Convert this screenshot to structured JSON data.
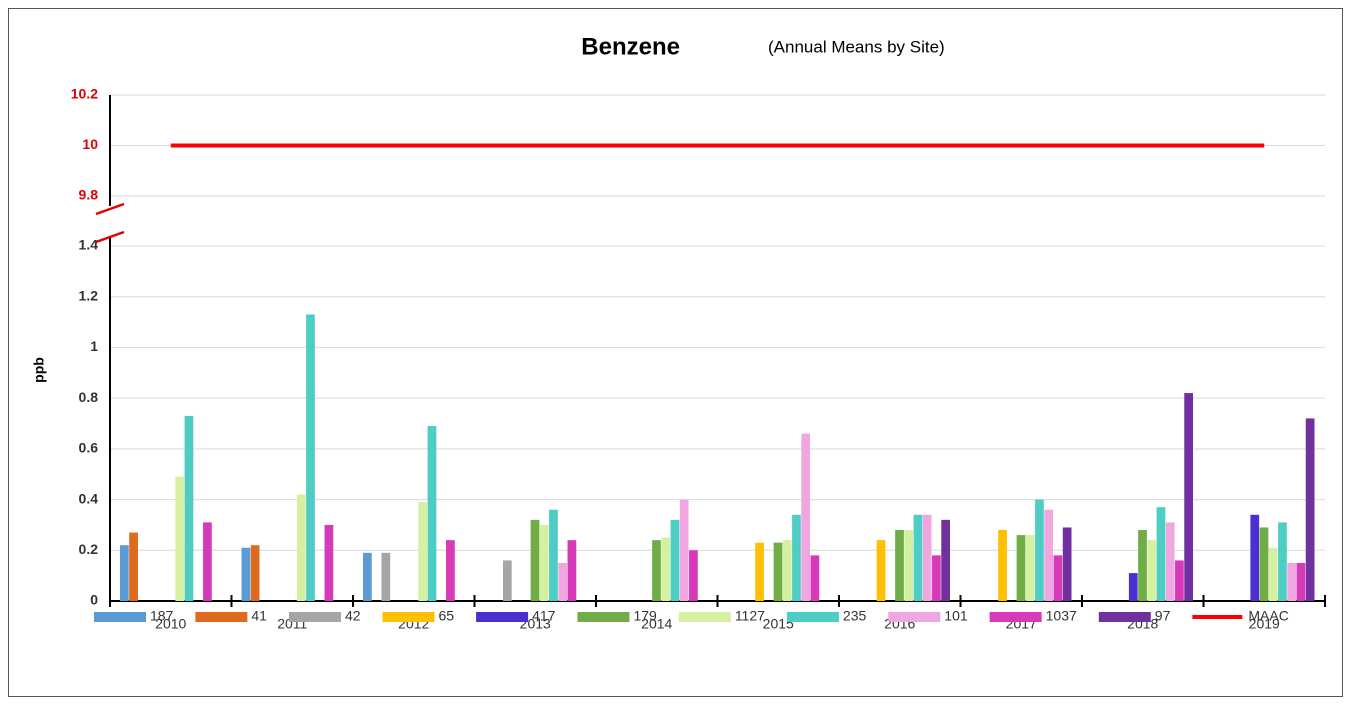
{
  "chart_data": {
    "type": "bar",
    "title": "Benzene",
    "subtitle": "(Annual Means by Site)",
    "y_label": "ppb",
    "categories": [
      "2010",
      "2011",
      "2012",
      "2013",
      "2014",
      "2015",
      "2016",
      "2017",
      "2018",
      "2019"
    ],
    "ylim": [
      0,
      1.4
    ],
    "yticks": [
      0,
      0.2,
      0.4,
      0.6,
      0.8,
      1,
      1.2,
      1.4
    ],
    "y2lim": [
      9.8,
      10.2
    ],
    "y2ticks": [
      9.8,
      10,
      10.2
    ],
    "grid": true,
    "legend": "bottom",
    "series": [
      {
        "name": "187",
        "color": "#5b9bd5",
        "values": [
          0.22,
          0.21,
          0.19,
          null,
          null,
          null,
          null,
          null,
          null,
          null
        ]
      },
      {
        "name": "41",
        "color": "#dd6a1f",
        "values": [
          0.27,
          0.22,
          null,
          null,
          null,
          null,
          null,
          null,
          null,
          null
        ]
      },
      {
        "name": "42",
        "color": "#a5a5a5",
        "values": [
          null,
          null,
          0.19,
          0.16,
          null,
          null,
          null,
          null,
          null,
          null
        ]
      },
      {
        "name": "65",
        "color": "#ffc000",
        "values": [
          null,
          null,
          null,
          null,
          null,
          0.23,
          0.24,
          0.28,
          null,
          null
        ]
      },
      {
        "name": "417",
        "color": "#4b2fd0",
        "values": [
          null,
          null,
          null,
          null,
          null,
          null,
          null,
          null,
          0.11,
          0.34
        ]
      },
      {
        "name": "179",
        "color": "#70ad47",
        "values": [
          null,
          null,
          null,
          0.32,
          0.24,
          0.23,
          0.28,
          0.26,
          0.28,
          0.29
        ]
      },
      {
        "name": "1127",
        "color": "#d5f0a0",
        "values": [
          0.49,
          0.42,
          0.39,
          0.3,
          0.25,
          0.24,
          0.28,
          0.26,
          0.24,
          0.21
        ]
      },
      {
        "name": "235",
        "color": "#4ecdc4",
        "values": [
          0.73,
          1.13,
          0.69,
          0.36,
          0.32,
          0.34,
          0.34,
          0.4,
          0.37,
          0.31
        ]
      },
      {
        "name": "101",
        "color": "#f0a6e0",
        "values": [
          null,
          null,
          null,
          0.15,
          0.4,
          0.66,
          0.34,
          0.36,
          0.31,
          0.15
        ]
      },
      {
        "name": "1037",
        "color": "#d63ab8",
        "values": [
          0.31,
          0.3,
          0.24,
          0.24,
          0.2,
          0.18,
          0.18,
          0.18,
          0.16,
          0.15
        ]
      },
      {
        "name": "97",
        "color": "#7030a0",
        "values": [
          null,
          null,
          null,
          null,
          null,
          null,
          0.32,
          0.29,
          0.82,
          0.72
        ]
      },
      {
        "name": "MAAC",
        "color": "#ff0000",
        "type": "line",
        "axis": "y2",
        "values": [
          10,
          10,
          10,
          10,
          10,
          10,
          10,
          10,
          10,
          10
        ]
      }
    ]
  }
}
